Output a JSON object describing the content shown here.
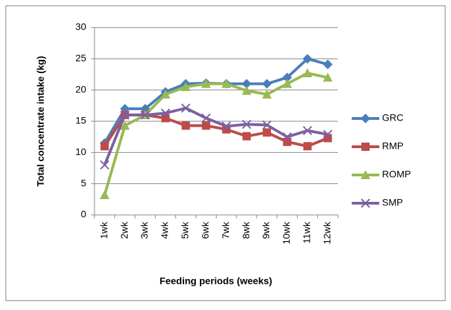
{
  "chart_data": {
    "type": "line",
    "x_label": "Feeding periods (weeks)",
    "y_label": "Total concentrate intake (kg)",
    "categories": [
      "1wk",
      "2wk",
      "3wk",
      "4wk",
      "5wk",
      "6wk",
      "7wk",
      "8wk",
      "9wk",
      "10wk",
      "11wk",
      "12wk"
    ],
    "series": [
      {
        "name": "GRC",
        "color": "#4a7ebb",
        "marker": "diamond",
        "values": [
          11.5,
          17,
          17,
          19.7,
          21,
          21.1,
          21,
          21,
          21,
          22,
          25,
          24.1
        ]
      },
      {
        "name": "RMP",
        "color": "#be4b48",
        "marker": "square",
        "values": [
          11,
          16,
          16,
          15.5,
          14.3,
          14.3,
          13.7,
          12.6,
          13.2,
          11.7,
          11,
          12.3
        ]
      },
      {
        "name": "ROMP",
        "color": "#98b954",
        "marker": "triangle",
        "values": [
          3.2,
          14.3,
          16,
          19.3,
          20.5,
          21,
          21,
          19.9,
          19.3,
          21,
          22.7,
          22
        ]
      },
      {
        "name": "SMP",
        "color": "#7d60a0",
        "marker": "x",
        "values": [
          8,
          16,
          16,
          16.3,
          17.1,
          15.5,
          14.2,
          14.5,
          14.4,
          12.5,
          13.5,
          12.9
        ]
      }
    ],
    "ylim": [
      0,
      30
    ],
    "yticks": [
      0,
      5,
      10,
      15,
      20,
      25,
      30
    ],
    "grid": true,
    "legend": "right"
  }
}
